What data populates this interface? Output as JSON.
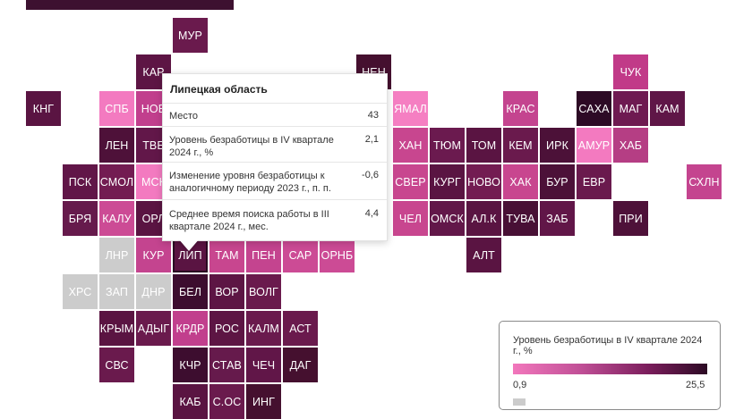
{
  "map_data": {
    "regions": [
      {
        "code": "МУР",
        "color": "#6a1a4d"
      },
      {
        "code": "КАР",
        "color": "#5d1544"
      },
      {
        "code": "НЕН",
        "color": "#45102f"
      },
      {
        "code": "ЧУК",
        "color": "#c13a88"
      },
      {
        "code": "КНГ",
        "color": "#5a1442"
      },
      {
        "code": "СПБ",
        "color": "#f37ac0"
      },
      {
        "code": "НОВ",
        "color": "#c13f8d"
      },
      {
        "code": "ЯМАЛ",
        "color": "#f57fc2"
      },
      {
        "code": "КРАС",
        "color": "#c4448f"
      },
      {
        "code": "САХА",
        "color": "#2d0a25"
      },
      {
        "code": "МАГ",
        "color": "#6e1a51"
      },
      {
        "code": "КАМ",
        "color": "#5f1647"
      },
      {
        "code": "ЛЕН",
        "color": "#4e1139"
      },
      {
        "code": "ТВЕ",
        "color": "#621749"
      },
      {
        "code": "ХАН",
        "color": "#c8468f"
      },
      {
        "code": "ТЮМ",
        "color": "#6b1a4f"
      },
      {
        "code": "ТОМ",
        "color": "#5a1442"
      },
      {
        "code": "КЕМ",
        "color": "#6a1a4d"
      },
      {
        "code": "ИРК",
        "color": "#4c1138"
      },
      {
        "code": "АМУР",
        "color": "#f37ac0"
      },
      {
        "code": "ХАБ",
        "color": "#b53e84"
      },
      {
        "code": "ПСК",
        "color": "#611648"
      },
      {
        "code": "СМОЛ",
        "color": "#731c52"
      },
      {
        "code": "МСК",
        "color": "#f37ac0"
      },
      {
        "code": "СВЕР",
        "color": "#c8468f"
      },
      {
        "code": "КУРГ",
        "color": "#5a1442"
      },
      {
        "code": "НОВО",
        "color": "#731c52"
      },
      {
        "code": "ХАК",
        "color": "#c8468f"
      },
      {
        "code": "БУР",
        "color": "#4c1138"
      },
      {
        "code": "ЕВР",
        "color": "#6a1a4d"
      },
      {
        "code": "СХЛН",
        "color": "#c4448f"
      },
      {
        "code": "БРЯ",
        "color": "#661a4c"
      },
      {
        "code": "КАЛУ",
        "color": "#cc4b95"
      },
      {
        "code": "ОРЛ",
        "color": "#5a1442"
      },
      {
        "code": "ЧЕЛ",
        "color": "#c8468f"
      },
      {
        "code": "ОМСК",
        "color": "#621749"
      },
      {
        "code": "АЛ.К",
        "color": "#5a1442"
      },
      {
        "code": "ТУВА",
        "color": "#481035"
      },
      {
        "code": "ЗАБ",
        "color": "#611648"
      },
      {
        "code": "ПРИ",
        "color": "#4e1139"
      },
      {
        "code": "ЛНР",
        "color": "#cccccc"
      },
      {
        "code": "КУР",
        "color": "#c4448f"
      },
      {
        "code": "ЛИП",
        "color": "#5a1442",
        "selected": true
      },
      {
        "code": "ТАМ",
        "color": "#c8468f"
      },
      {
        "code": "ПЕН",
        "color": "#c4448f"
      },
      {
        "code": "САР",
        "color": "#cc4b95"
      },
      {
        "code": "ОРНБ",
        "color": "#cc4b95"
      },
      {
        "code": "АЛТ",
        "color": "#5a1442"
      },
      {
        "code": "ХРС",
        "color": "#cccccc"
      },
      {
        "code": "ЗАП",
        "color": "#cccccc"
      },
      {
        "code": "ДНР",
        "color": "#cccccc"
      },
      {
        "code": "БЕЛ",
        "color": "#3d0d2f"
      },
      {
        "code": "ВОР",
        "color": "#5d1544"
      },
      {
        "code": "ВОЛГ",
        "color": "#6a1a4d"
      },
      {
        "code": "КРЫМ",
        "color": "#5a1442"
      },
      {
        "code": "АДЫГ",
        "color": "#6a1a4d"
      },
      {
        "code": "КРДР",
        "color": "#c13f8d"
      },
      {
        "code": "РОС",
        "color": "#5d1544"
      },
      {
        "code": "КАЛМ",
        "color": "#6a1a4d"
      },
      {
        "code": "АСТ",
        "color": "#6a1a4d"
      },
      {
        "code": "СВС",
        "color": "#6a1a4d"
      },
      {
        "code": "КЧР",
        "color": "#3d0d2f"
      },
      {
        "code": "СТАВ",
        "color": "#661a4c"
      },
      {
        "code": "ЧЕЧ",
        "color": "#611648"
      },
      {
        "code": "ДАГ",
        "color": "#45102f"
      },
      {
        "code": "КАБ",
        "color": "#5a1442"
      },
      {
        "code": "С.ОС",
        "color": "#6a1a4d"
      },
      {
        "code": "ИНГ",
        "color": "#45102f"
      }
    ]
  },
  "tooltip": {
    "title": "Липецкая область",
    "rows": [
      {
        "label": "Место",
        "value": "43"
      },
      {
        "label": "Уровень безработицы в IV квартале 2024 г., %",
        "value": "2,1"
      },
      {
        "label": "Изменение уровня безработицы к аналогичному периоду 2023 г., п. п.",
        "value": "-0,6"
      },
      {
        "label": "Среднее время поиска работы в III квартале 2024 г., мес.",
        "value": "4,4"
      }
    ]
  },
  "legend": {
    "title": "Уровень безработицы в IV квартале 2024 г., %",
    "min": "0,9",
    "max": "25,5",
    "colors": [
      "#f277bc",
      "#c04f96",
      "#7a1d5b",
      "#2c0a24"
    ],
    "no_data_color": "#cccccc"
  }
}
